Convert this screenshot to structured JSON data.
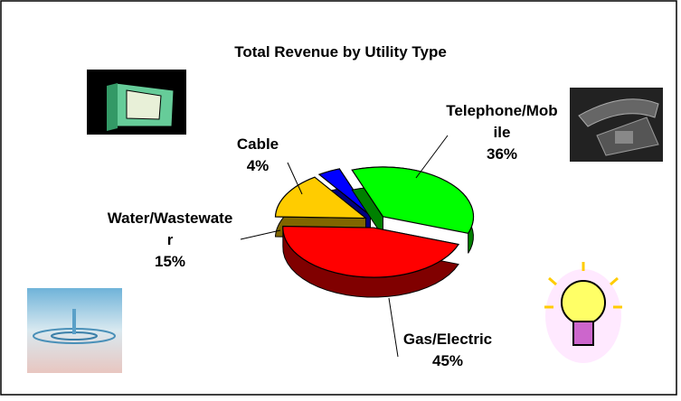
{
  "chart_data": {
    "type": "pie3d",
    "title": "Total Revenue by Utility Type",
    "categories": [
      "Telephone/Mobile",
      "Gas/Electric",
      "Water/Wastewater",
      "Cable"
    ],
    "values": [
      36,
      45,
      15,
      4
    ],
    "value_labels": [
      "36%",
      "45%",
      "15%",
      "4%"
    ],
    "colors": [
      "#00ff00",
      "#ff0000",
      "#ffcc00",
      "#0000ff"
    ],
    "side_colors": [
      "#008000",
      "#800000",
      "#806600",
      "#000080"
    ]
  }
}
